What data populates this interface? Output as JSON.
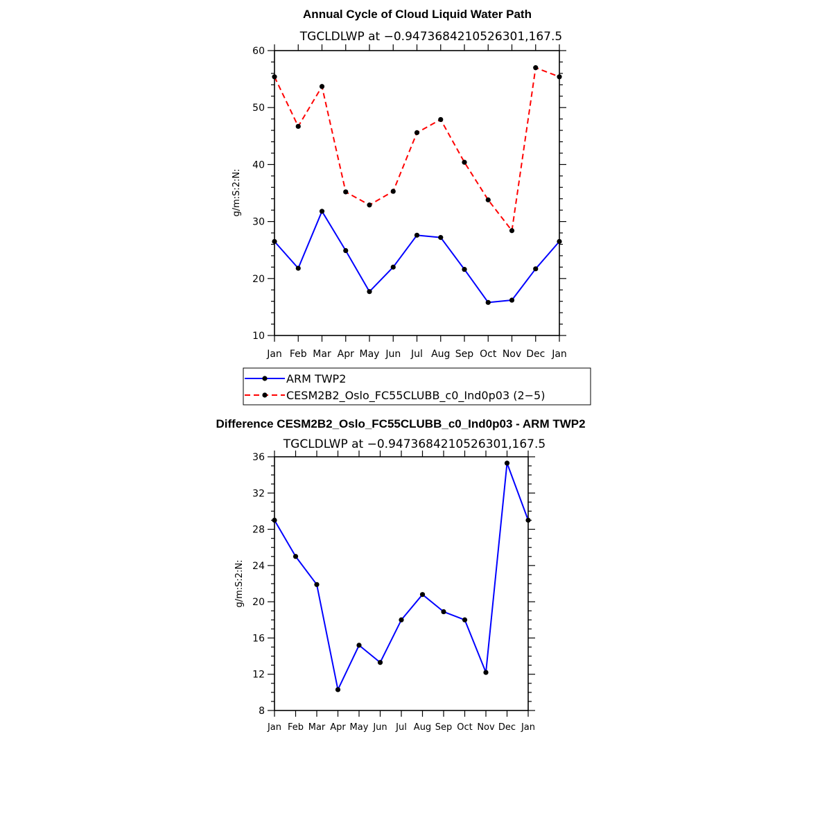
{
  "chart_data": [
    {
      "type": "line",
      "title": "Annual Cycle of Cloud Liquid Water Path",
      "subtitle": "TGCLDLWP at −0.9473684210526301,167.5",
      "ylabel": "g/m:S:2:N:",
      "xlabel": "",
      "categories": [
        "Jan",
        "Feb",
        "Mar",
        "Apr",
        "May",
        "Jun",
        "Jul",
        "Aug",
        "Sep",
        "Oct",
        "Nov",
        "Dec",
        "Jan"
      ],
      "ylim": [
        10,
        60
      ],
      "yticks": [
        10,
        20,
        30,
        40,
        50,
        60
      ],
      "series": [
        {
          "name": "ARM TWP2",
          "color": "#0000ff",
          "dash": "solid",
          "values": [
            26.5,
            21.8,
            31.8,
            24.9,
            17.7,
            22.0,
            27.6,
            27.2,
            21.6,
            15.8,
            16.2,
            21.7,
            26.5
          ]
        },
        {
          "name": "CESM2B2_Oslo_FC55CLUBB_c0_Ind0p03 (2−5)",
          "color": "#ff0000",
          "dash": "dashed",
          "values": [
            55.4,
            46.7,
            53.7,
            35.2,
            32.9,
            35.3,
            45.6,
            47.9,
            40.4,
            33.8,
            28.4,
            57.0,
            55.4
          ]
        }
      ],
      "legend": {
        "position": "below"
      }
    },
    {
      "type": "line",
      "title": "Difference CESM2B2_Oslo_FC55CLUBB_c0_Ind0p03 - ARM TWP2",
      "subtitle": "TGCLDLWP at −0.9473684210526301,167.5",
      "ylabel": "g/m:S:2:N:",
      "xlabel": "",
      "categories": [
        "Jan",
        "Feb",
        "Mar",
        "Apr",
        "May",
        "Jun",
        "Jul",
        "Aug",
        "Sep",
        "Oct",
        "Nov",
        "Dec",
        "Jan"
      ],
      "ylim": [
        8,
        36
      ],
      "yticks": [
        8,
        12,
        16,
        20,
        24,
        28,
        32,
        36
      ],
      "series": [
        {
          "name": "Difference",
          "color": "#0000ff",
          "dash": "solid",
          "values": [
            29.0,
            25.0,
            21.9,
            10.3,
            15.2,
            13.3,
            18.0,
            20.8,
            18.9,
            18.0,
            12.2,
            35.3,
            29.0
          ]
        }
      ]
    }
  ]
}
